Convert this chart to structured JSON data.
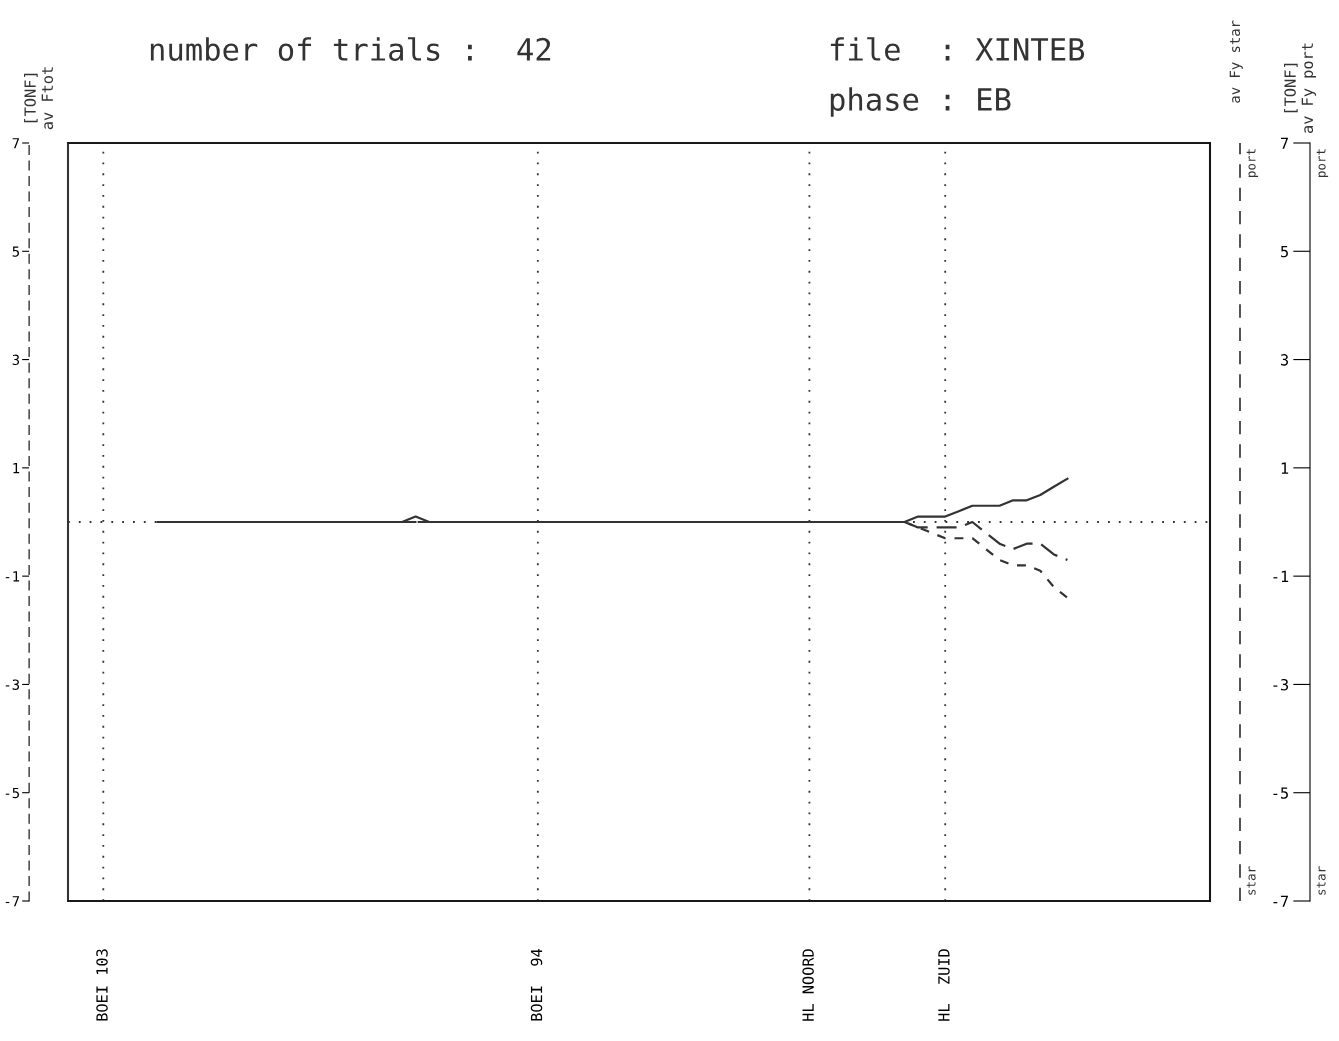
{
  "chart_data": {
    "type": "line",
    "title": "number of trials :  42",
    "annotations": [
      "file  : XINTEB",
      "phase : EB",
      "av Fy star",
      "port",
      "star",
      "port",
      "star",
      "[TONF]\nav Ftot",
      "[TONF]\nav Fy port"
    ],
    "categories": [
      null,
      null,
      "BOEI 103",
      null,
      null,
      null,
      null,
      null,
      null,
      null,
      null,
      null,
      null,
      null,
      null,
      null,
      null,
      null,
      null,
      null,
      null,
      null,
      null,
      null,
      null,
      null,
      null,
      null,
      null,
      null,
      null,
      null,
      null,
      null,
      "BOEI  94",
      null,
      null,
      null,
      null,
      null,
      null,
      null,
      null,
      null,
      null,
      null,
      null,
      null,
      null,
      null,
      null,
      null,
      null,
      null,
      "HL NOORD",
      null,
      null,
      null,
      null,
      null,
      null,
      null,
      null,
      null,
      "HL  ZUID",
      null,
      null,
      null,
      null,
      null,
      null,
      null,
      null,
      null,
      null,
      null,
      null,
      null,
      null,
      null,
      null,
      null,
      null,
      null
    ],
    "series": [
      {
        "color": "#333333",
        "line_style": "solid",
        "values": [
          null,
          null,
          null,
          null,
          null,
          null,
          0,
          0,
          0,
          0,
          0,
          0,
          0,
          0,
          0,
          0,
          0,
          0,
          0,
          0,
          0,
          0,
          0,
          0,
          0,
          0.1,
          0,
          0,
          0,
          0,
          0,
          0,
          0,
          0,
          0,
          0,
          0,
          0,
          0,
          0,
          0,
          0,
          0,
          0,
          0,
          0,
          0,
          0,
          0,
          0,
          0,
          0,
          0,
          0,
          0,
          0,
          0,
          0,
          0,
          0,
          0,
          0,
          0.1,
          0.1,
          0.1,
          0.2,
          0.3,
          0.3,
          0.3,
          0.4,
          0.4,
          0.5,
          0.65,
          0.8,
          null,
          null,
          null,
          null,
          null,
          null,
          null,
          null,
          null,
          null
        ]
      },
      {
        "color": "#333333",
        "line_style": "dashed",
        "values": [
          null,
          null,
          null,
          null,
          null,
          null,
          0,
          0,
          0,
          0,
          0,
          0,
          0,
          0,
          0,
          0,
          0,
          0,
          0,
          0,
          0,
          0,
          0,
          0,
          0,
          0,
          0,
          0,
          0,
          0,
          0,
          0,
          0,
          0,
          0,
          0,
          0,
          0,
          0,
          0,
          0,
          0,
          0,
          0,
          0,
          0,
          0,
          0,
          0,
          0,
          0,
          0,
          0,
          0,
          0,
          0,
          0,
          0,
          0,
          0,
          0,
          0,
          -0.1,
          -0.1,
          -0.1,
          -0.1,
          0,
          -0.2,
          -0.4,
          -0.5,
          -0.4,
          -0.4,
          -0.6,
          -0.7,
          null,
          null,
          null,
          null,
          null,
          null,
          null,
          null,
          null,
          null
        ]
      },
      {
        "color": "#333333",
        "line_style": "dotted",
        "values": [
          null,
          null,
          null,
          null,
          null,
          null,
          0,
          0,
          0,
          0,
          0,
          0,
          0,
          0,
          0,
          0,
          0,
          0,
          0,
          0,
          0,
          0,
          0,
          0,
          0,
          0,
          0,
          0,
          0,
          0,
          0,
          0,
          0,
          0,
          0,
          0,
          0,
          0,
          0,
          0,
          0,
          0,
          0,
          0,
          0,
          0,
          0,
          0,
          0,
          0,
          0,
          0,
          0,
          0,
          0,
          0,
          0,
          0,
          0,
          0,
          0,
          0,
          -0.1,
          -0.2,
          -0.3,
          -0.3,
          -0.3,
          -0.5,
          -0.7,
          -0.8,
          -0.8,
          -0.9,
          -1.2,
          -1.4,
          null,
          null,
          null,
          null,
          null,
          null,
          null,
          null,
          null,
          null
        ]
      }
    ],
    "ylim": [
      -7,
      7
    ],
    "yticks": [
      -7,
      -5,
      -3,
      -1,
      1,
      3,
      5,
      7
    ],
    "y2lim": [
      -7,
      7
    ],
    "y2ticks": [
      -7,
      -5,
      -3,
      -1,
      1,
      3,
      5,
      7
    ],
    "ref_lines": [
      {
        "axis": "y",
        "value": 0,
        "line_style": "dotted"
      }
    ],
    "grid": "x",
    "marker": "none"
  }
}
